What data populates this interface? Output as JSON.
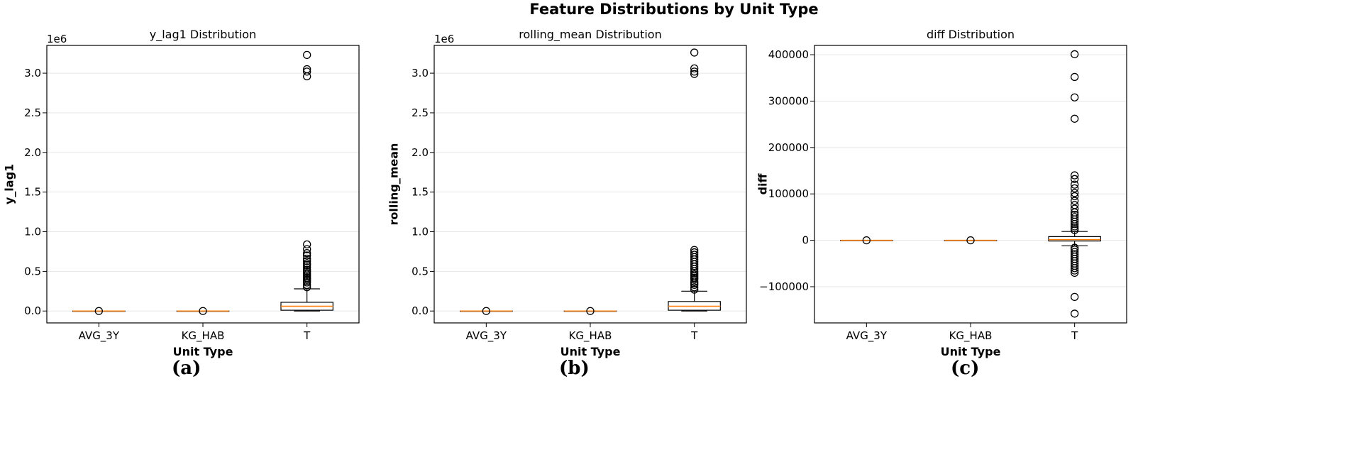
{
  "figure": {
    "title": "Feature Distributions by Unit Type"
  },
  "chart_data": [
    {
      "type": "box",
      "title": "y_lag1 Distribution",
      "xlabel": "Unit Type",
      "ylabel": "y_lag1",
      "offset_text": "1e6",
      "caption": "(a)",
      "categories": [
        "AVG_3Y",
        "KG_HAB",
        "T"
      ],
      "ylim": [
        -0.15,
        3.35
      ],
      "yticks": [
        0.0,
        0.5,
        1.0,
        1.5,
        2.0,
        2.5,
        3.0
      ],
      "ytick_labels": [
        "0.0",
        "0.5",
        "1.0",
        "1.5",
        "2.0",
        "2.5",
        "3.0"
      ],
      "grid": "horizontal",
      "boxes": [
        {
          "category": "AVG_3Y",
          "whislo": 0.0,
          "q1": 0.0,
          "med": 0.0,
          "q3": 0.0,
          "whishi": 0.0,
          "fliers": [
            0.0
          ]
        },
        {
          "category": "KG_HAB",
          "whislo": 0.0,
          "q1": 0.0,
          "med": 0.0,
          "q3": 0.0,
          "whishi": 0.0,
          "fliers": [
            0.0
          ]
        },
        {
          "category": "T",
          "whislo": 0.0,
          "q1": 0.01,
          "med": 0.06,
          "q3": 0.11,
          "whishi": 0.28,
          "fliers": [
            0.3,
            0.33,
            0.36,
            0.38,
            0.4,
            0.42,
            0.44,
            0.46,
            0.48,
            0.5,
            0.52,
            0.55,
            0.58,
            0.6,
            0.63,
            0.66,
            0.7,
            0.73,
            0.78,
            0.84,
            2.96,
            3.02,
            3.05,
            3.23
          ]
        }
      ]
    },
    {
      "type": "box",
      "title": "rolling_mean Distribution",
      "xlabel": "Unit Type",
      "ylabel": "rolling_mean",
      "offset_text": "1e6",
      "caption": "(b)",
      "categories": [
        "AVG_3Y",
        "KG_HAB",
        "T"
      ],
      "ylim": [
        -0.15,
        3.35
      ],
      "yticks": [
        0.0,
        0.5,
        1.0,
        1.5,
        2.0,
        2.5,
        3.0
      ],
      "ytick_labels": [
        "0.0",
        "0.5",
        "1.0",
        "1.5",
        "2.0",
        "2.5",
        "3.0"
      ],
      "grid": "horizontal",
      "boxes": [
        {
          "category": "AVG_3Y",
          "whislo": 0.0,
          "q1": 0.0,
          "med": 0.0,
          "q3": 0.0,
          "whishi": 0.0,
          "fliers": [
            0.0
          ]
        },
        {
          "category": "KG_HAB",
          "whislo": 0.0,
          "q1": 0.0,
          "med": 0.0,
          "q3": 0.0,
          "whishi": 0.0,
          "fliers": [
            0.0
          ]
        },
        {
          "category": "T",
          "whislo": 0.0,
          "q1": 0.01,
          "med": 0.06,
          "q3": 0.12,
          "whishi": 0.25,
          "fliers": [
            0.27,
            0.3,
            0.33,
            0.35,
            0.37,
            0.4,
            0.42,
            0.44,
            0.46,
            0.48,
            0.5,
            0.53,
            0.56,
            0.59,
            0.62,
            0.65,
            0.68,
            0.71,
            0.74,
            0.77,
            2.99,
            3.02,
            3.06,
            3.26
          ]
        }
      ]
    },
    {
      "type": "box",
      "title": "diff Distribution",
      "xlabel": "Unit Type",
      "ylabel": "diff",
      "offset_text": "",
      "caption": "(c)",
      "categories": [
        "AVG_3Y",
        "KG_HAB",
        "T"
      ],
      "ylim": [
        -178000,
        420000
      ],
      "yticks": [
        -100000,
        0,
        100000,
        200000,
        300000,
        400000
      ],
      "ytick_labels": [
        "−100000",
        "0",
        "100000",
        "200000",
        "300000",
        "400000"
      ],
      "grid": "horizontal",
      "boxes": [
        {
          "category": "AVG_3Y",
          "whislo": 0,
          "q1": 0,
          "med": 0,
          "q3": 0,
          "whishi": 0,
          "fliers": [
            0
          ]
        },
        {
          "category": "KG_HAB",
          "whislo": 0,
          "q1": 0,
          "med": 0,
          "q3": 0,
          "whishi": 0,
          "fliers": [
            0
          ]
        },
        {
          "category": "T",
          "whislo": -12000,
          "q1": -1500,
          "med": 1500,
          "q3": 8000,
          "whishi": 19000,
          "fliers": [
            -158000,
            -122000,
            -70000,
            -65000,
            -60000,
            -55000,
            -50000,
            -45000,
            -40000,
            -35000,
            -30000,
            -25000,
            -20000,
            -16000,
            22000,
            26000,
            30000,
            35000,
            40000,
            45000,
            50000,
            55000,
            60000,
            68000,
            76000,
            85000,
            95000,
            102000,
            112000,
            120000,
            132000,
            140000,
            262000,
            308000,
            352000,
            401000
          ]
        }
      ]
    }
  ]
}
